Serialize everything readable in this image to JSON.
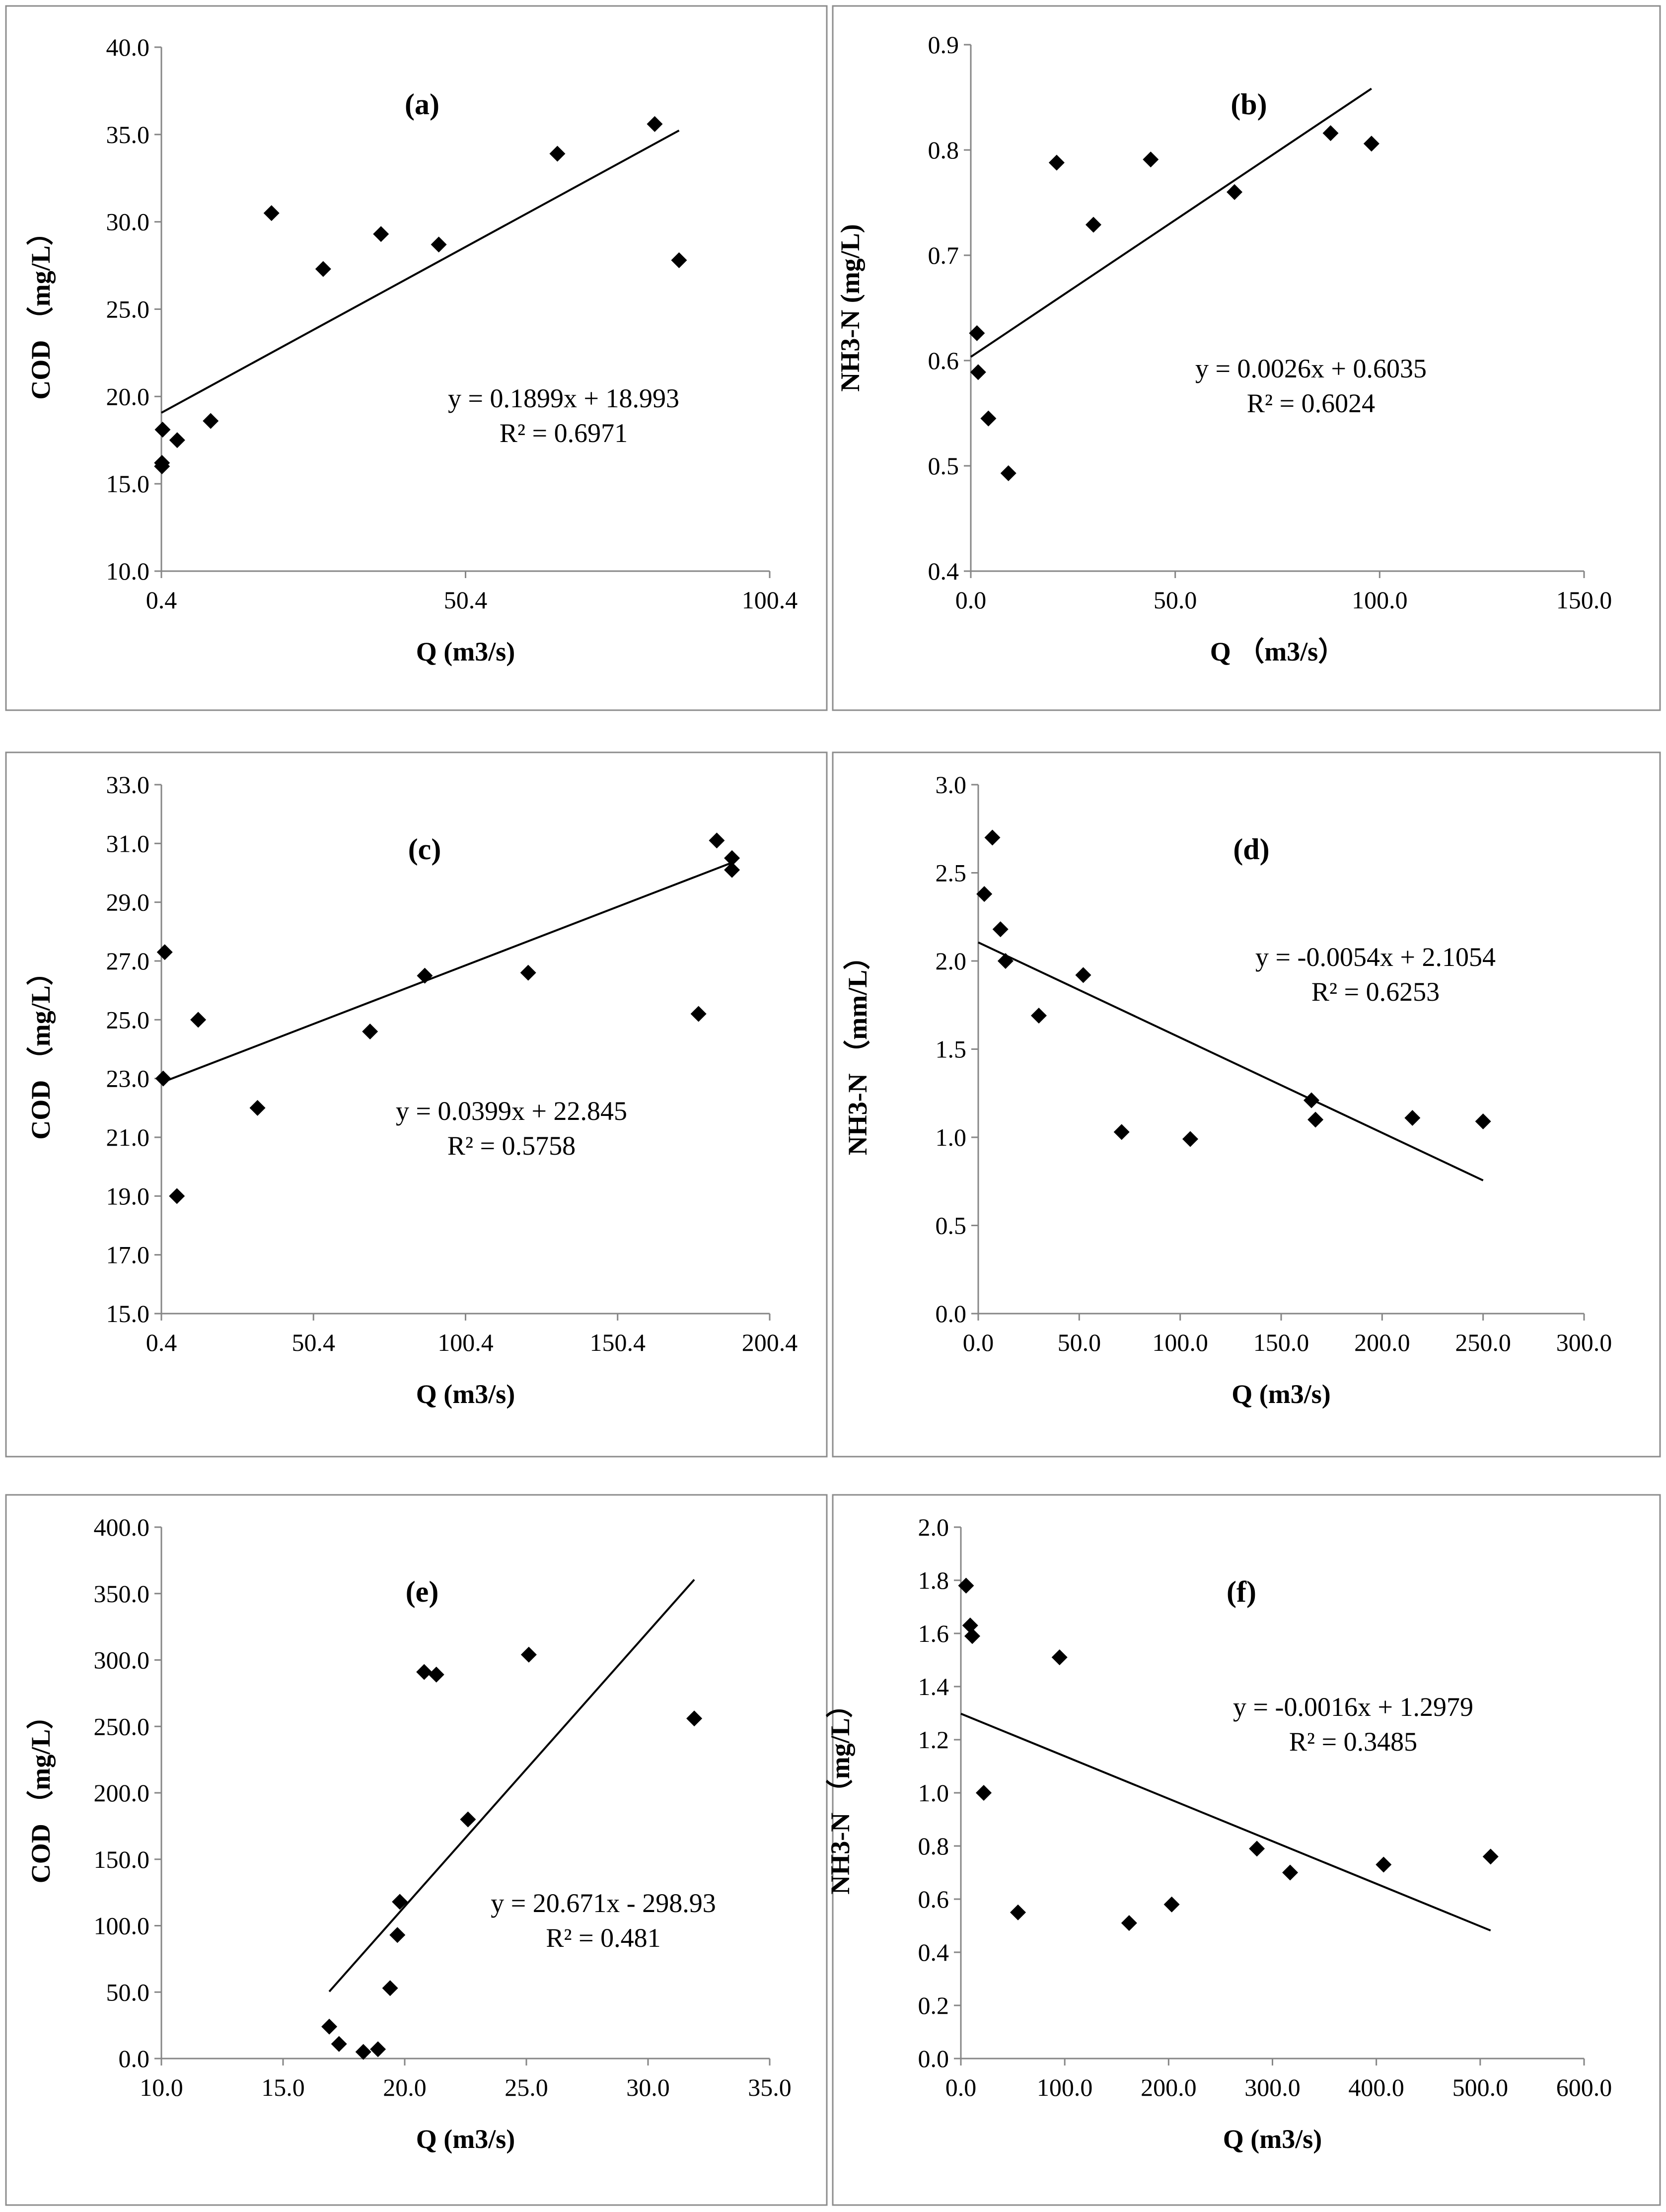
{
  "chart_data": [
    {
      "type": "scatter",
      "panel_label": "(a)",
      "xlabel": "Q (m3/s)",
      "ylabel": "COD （mg/L）",
      "xlim": [
        0.4,
        100.4
      ],
      "ylim": [
        10,
        40
      ],
      "x_ticks": [
        0.4,
        50.4,
        100.4
      ],
      "x_tick_labels": [
        "0.4",
        "50.4",
        "100.4"
      ],
      "y_ticks": [
        10,
        15,
        20,
        25,
        30,
        35,
        40
      ],
      "y_tick_labels": [
        "10.0",
        "15.0",
        "20.0",
        "25.0",
        "30.0",
        "35.0",
        "40.0"
      ],
      "x": [
        0.5,
        0.5,
        0.6,
        3.0,
        8.5,
        18.5,
        27.0,
        36.5,
        46.0,
        65.5,
        81.5,
        85.5
      ],
      "y": [
        16.2,
        16.0,
        18.1,
        17.5,
        18.6,
        30.5,
        27.3,
        29.3,
        28.7,
        33.9,
        35.6,
        27.8
      ],
      "trendline": {
        "slope": 0.1899,
        "intercept": 18.993,
        "x_range": [
          0.4,
          85.5
        ]
      },
      "equation": "y = 0.1899x + 18.993",
      "r2": "R² = 0.6971"
    },
    {
      "type": "scatter",
      "panel_label": "(b)",
      "xlabel": "Q （m3/s）",
      "ylabel": "NH3-N (mg/L)",
      "xlim": [
        0,
        150
      ],
      "ylim": [
        0.4,
        0.9
      ],
      "x_ticks": [
        0,
        50,
        100,
        150
      ],
      "x_tick_labels": [
        "0.0",
        "50.0",
        "100.0",
        "150.0"
      ],
      "y_ticks": [
        0.4,
        0.5,
        0.6,
        0.7,
        0.8,
        0.9
      ],
      "y_tick_labels": [
        "0.4",
        "0.5",
        "0.6",
        "0.7",
        "0.8",
        "0.9"
      ],
      "x": [
        1.5,
        1.8,
        4.3,
        9.2,
        21.0,
        30.0,
        44.0,
        64.5,
        88.0,
        98.0
      ],
      "y": [
        0.626,
        0.589,
        0.545,
        0.493,
        0.788,
        0.729,
        0.791,
        0.76,
        0.816,
        0.806
      ],
      "trendline": {
        "slope": 0.0026,
        "intercept": 0.6035,
        "x_range": [
          0,
          98
        ]
      },
      "equation": "y = 0.0026x + 0.6035",
      "r2": "R² = 0.6024"
    },
    {
      "type": "scatter",
      "panel_label": "(c)",
      "xlabel": "Q (m3/s)",
      "ylabel": "COD （mg/L）",
      "xlim": [
        0.4,
        200.4
      ],
      "ylim": [
        15,
        33
      ],
      "x_ticks": [
        0.4,
        50.4,
        100.4,
        150.4,
        200.4
      ],
      "x_tick_labels": [
        "0.4",
        "50.4",
        "100.4",
        "150.4",
        "200.4"
      ],
      "y_ticks": [
        15,
        17,
        19,
        21,
        23,
        25,
        27,
        29,
        31,
        33
      ],
      "y_tick_labels": [
        "15.0",
        "17.0",
        "19.0",
        "21.0",
        "23.0",
        "25.0",
        "27.0",
        "29.0",
        "31.0",
        "33.0"
      ],
      "x": [
        1.0,
        1.5,
        5.5,
        12.5,
        32.0,
        69.0,
        87.0,
        121.0,
        177.0,
        183.0,
        188.0,
        188.0
      ],
      "y": [
        23.0,
        27.3,
        19.0,
        25.0,
        22.0,
        24.6,
        26.5,
        26.6,
        25.2,
        31.1,
        30.5,
        30.1
      ],
      "trendline": {
        "slope": 0.0399,
        "intercept": 22.845,
        "x_range": [
          0.4,
          188
        ]
      },
      "equation": "y = 0.0399x + 22.845",
      "r2": "R² = 0.5758"
    },
    {
      "type": "scatter",
      "panel_label": "(d)",
      "xlabel": "Q (m3/s)",
      "ylabel": "NH3-N （mm/L）",
      "xlim": [
        0,
        300
      ],
      "ylim": [
        0,
        3
      ],
      "x_ticks": [
        0,
        50,
        100,
        150,
        200,
        250,
        300
      ],
      "x_tick_labels": [
        "0.0",
        "50.0",
        "100.0",
        "150.0",
        "200.0",
        "250.0",
        "300.0"
      ],
      "y_ticks": [
        0,
        0.5,
        1,
        1.5,
        2,
        2.5,
        3
      ],
      "y_tick_labels": [
        "0.0",
        "0.5",
        "1.0",
        "1.5",
        "2.0",
        "2.5",
        "3.0"
      ],
      "x": [
        3.0,
        7.0,
        11.0,
        13.5,
        30.0,
        52.0,
        71.0,
        105.0,
        165.0,
        167.0,
        215.0,
        250.0
      ],
      "y": [
        2.38,
        2.7,
        2.18,
        2.0,
        1.69,
        1.92,
        1.03,
        0.99,
        1.21,
        1.1,
        1.11,
        1.09
      ],
      "trendline": {
        "slope": -0.0054,
        "intercept": 2.1054,
        "x_range": [
          0,
          250
        ]
      },
      "equation": "y = -0.0054x + 2.1054",
      "r2": "R² = 0.6253"
    },
    {
      "type": "scatter",
      "panel_label": "(e)",
      "xlabel": "Q (m3/s)",
      "ylabel": "COD （mg/L）",
      "xlim": [
        10,
        35
      ],
      "ylim": [
        0,
        400
      ],
      "x_ticks": [
        10,
        15,
        20,
        25,
        30,
        35
      ],
      "x_tick_labels": [
        "10.0",
        "15.0",
        "20.0",
        "25.0",
        "30.0",
        "35.0"
      ],
      "y_ticks": [
        0,
        50,
        100,
        150,
        200,
        250,
        300,
        350,
        400
      ],
      "y_tick_labels": [
        "0.0",
        "50.0",
        "100.0",
        "150.0",
        "200.0",
        "250.0",
        "300.0",
        "350.0",
        "400.0"
      ],
      "x": [
        16.9,
        17.3,
        18.3,
        18.9,
        19.4,
        19.7,
        19.8,
        20.8,
        21.3,
        22.6,
        25.1,
        31.9
      ],
      "y": [
        24,
        11,
        5,
        7,
        53,
        93,
        118,
        291,
        289,
        180,
        304,
        256
      ],
      "trendline": {
        "slope": 20.671,
        "intercept": -298.93,
        "x_range": [
          16.9,
          31.9
        ]
      },
      "equation": "y = 20.671x - 298.93",
      "r2": "R² = 0.481"
    },
    {
      "type": "scatter",
      "panel_label": "(f)",
      "xlabel": "Q (m3/s)",
      "ylabel": "NH3-N （mg/L）",
      "xlim": [
        0,
        600
      ],
      "ylim": [
        0,
        2
      ],
      "x_ticks": [
        0,
        100,
        200,
        300,
        400,
        500,
        600
      ],
      "x_tick_labels": [
        "0.0",
        "100.0",
        "200.0",
        "300.0",
        "400.0",
        "500.0",
        "600.0"
      ],
      "y_ticks": [
        0,
        0.2,
        0.4,
        0.6,
        0.8,
        1.0,
        1.2,
        1.4,
        1.6,
        1.8,
        2.0
      ],
      "y_tick_labels": [
        "0.0",
        "0.2",
        "0.4",
        "0.6",
        "0.8",
        "1.0",
        "1.2",
        "1.4",
        "1.6",
        "1.8",
        "2.0"
      ],
      "x": [
        5,
        9,
        11,
        22,
        55,
        95,
        162,
        203,
        285,
        317,
        407,
        510
      ],
      "y": [
        1.78,
        1.63,
        1.59,
        1.0,
        0.55,
        1.51,
        0.51,
        0.58,
        0.79,
        0.7,
        0.73,
        0.76
      ],
      "trendline": {
        "slope": -0.0016,
        "intercept": 1.2979,
        "x_range": [
          0,
          510
        ]
      },
      "equation": "y = -0.0016x + 1.2979",
      "r2": "R² = 0.3485"
    }
  ]
}
